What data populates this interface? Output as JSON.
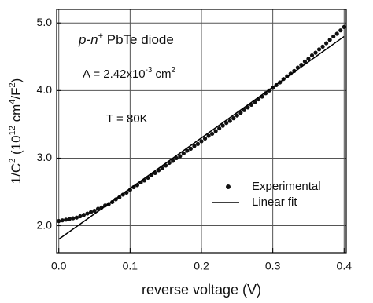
{
  "chart_data": {
    "type": "scatter",
    "xlabel": "reverse voltage (V)",
    "ylabel": [
      {
        "text": "1/C"
      },
      {
        "text": "2",
        "sup": true
      },
      {
        "text": " (10"
      },
      {
        "text": "12",
        "sup": true
      },
      {
        "text": " cm"
      },
      {
        "text": "4",
        "sup": true
      },
      {
        "text": "/F"
      },
      {
        "text": "2",
        "sup": true
      },
      {
        "text": ")"
      }
    ],
    "annotations": [
      [
        {
          "text": "p-n",
          "italic": true
        },
        {
          "text": "+",
          "sup": true
        },
        {
          "text": " PbTe diode"
        }
      ],
      [
        {
          "text": "A = 2.42x10"
        },
        {
          "text": "-3",
          "sup": true
        },
        {
          "text": " cm"
        },
        {
          "text": "2",
          "sup": true
        }
      ],
      [
        {
          "text": "T = 80K"
        }
      ]
    ],
    "xlim": [
      -0.003,
      0.403
    ],
    "ylim": [
      1.6,
      5.2
    ],
    "xticks": [
      {
        "value": 0,
        "label": "0.0"
      },
      0.1,
      0.2,
      0.3,
      0.4
    ],
    "yticks": [
      {
        "value": 2,
        "label": "2.0"
      },
      {
        "value": 3,
        "label": "3.0"
      },
      {
        "value": 4,
        "label": "4.0"
      },
      {
        "value": 5,
        "label": "5.0"
      }
    ],
    "grid": true,
    "legend": "lower right",
    "series": [
      {
        "name": "Experimental",
        "mode": "markers",
        "color": "#111111",
        "x": [
          0,
          0.005,
          0.01,
          0.015,
          0.02,
          0.025,
          0.03,
          0.035,
          0.04,
          0.045,
          0.05,
          0.055,
          0.06,
          0.065,
          0.07,
          0.075,
          0.08,
          0.085,
          0.09,
          0.095,
          0.1,
          0.105,
          0.11,
          0.115,
          0.12,
          0.125,
          0.13,
          0.135,
          0.14,
          0.145,
          0.15,
          0.155,
          0.16,
          0.165,
          0.17,
          0.175,
          0.18,
          0.185,
          0.19,
          0.195,
          0.2,
          0.205,
          0.21,
          0.215,
          0.22,
          0.225,
          0.23,
          0.235,
          0.24,
          0.245,
          0.25,
          0.255,
          0.26,
          0.265,
          0.27,
          0.275,
          0.28,
          0.285,
          0.29,
          0.295,
          0.3,
          0.305,
          0.31,
          0.315,
          0.32,
          0.325,
          0.33,
          0.335,
          0.34,
          0.345,
          0.35,
          0.355,
          0.36,
          0.365,
          0.37,
          0.375,
          0.38,
          0.385,
          0.39,
          0.395,
          0.4
        ],
        "values": [
          2.07,
          2.08,
          2.09,
          2.1,
          2.11,
          2.12,
          2.14,
          2.16,
          2.18,
          2.2,
          2.22,
          2.25,
          2.27,
          2.3,
          2.32,
          2.35,
          2.39,
          2.42,
          2.46,
          2.49,
          2.53,
          2.57,
          2.6,
          2.64,
          2.67,
          2.71,
          2.75,
          2.78,
          2.82,
          2.85,
          2.89,
          2.93,
          2.96,
          3.0,
          3.03,
          3.07,
          3.11,
          3.14,
          3.18,
          3.21,
          3.25,
          3.29,
          3.33,
          3.36,
          3.4,
          3.44,
          3.48,
          3.52,
          3.55,
          3.59,
          3.63,
          3.67,
          3.71,
          3.75,
          3.79,
          3.83,
          3.87,
          3.91,
          3.96,
          4.0,
          4.04,
          4.08,
          4.12,
          4.17,
          4.21,
          4.25,
          4.29,
          4.34,
          4.38,
          4.43,
          4.47,
          4.52,
          4.56,
          4.61,
          4.65,
          4.7,
          4.75,
          4.8,
          4.84,
          4.89,
          4.94
        ]
      },
      {
        "name": "Linear fit",
        "mode": "line",
        "color": "#000000",
        "x": [
          0,
          0.4
        ],
        "values": [
          1.8,
          4.8
        ]
      }
    ]
  }
}
